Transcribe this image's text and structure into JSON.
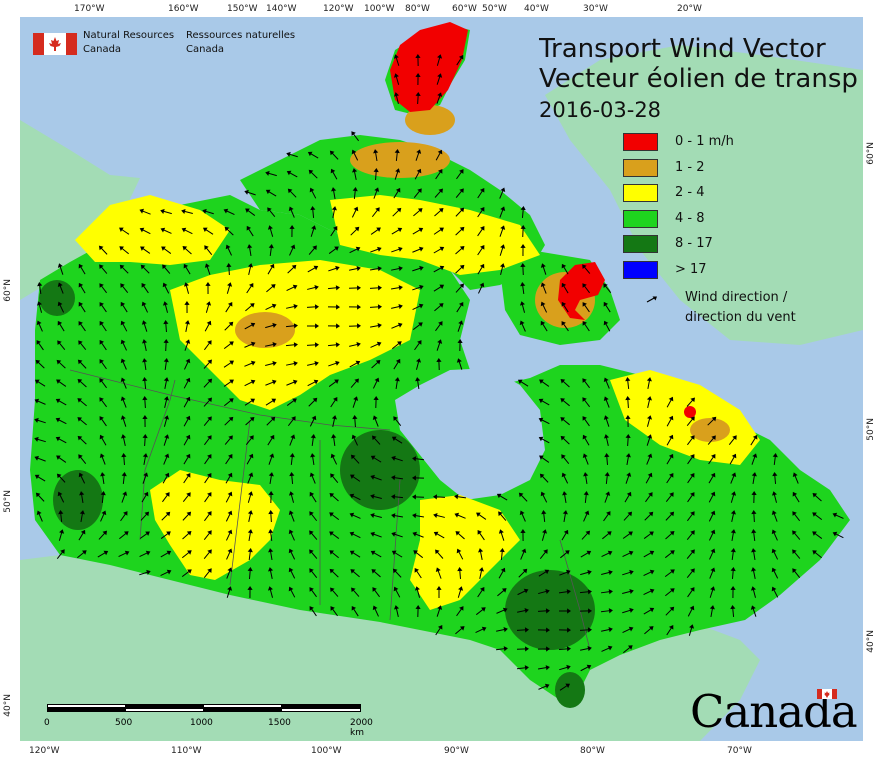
{
  "map": {
    "title_en": "Transport Wind Vector",
    "title_fr": "Vecteur éolien de transp",
    "date": "2016-03-28",
    "agency_en_line1": "Natural Resources",
    "agency_en_line2": "Canada",
    "agency_fr_line1": "Ressources naturelles",
    "agency_fr_line2": "Canada",
    "wordmark": "Canada",
    "colors": {
      "ocean": "#a9c9e8",
      "foreign_land": "#a3dcb5",
      "band_0_1": "#f20000",
      "band_1_2": "#d9a01c",
      "band_2_4": "#ffff00",
      "band_4_8": "#1ed41e",
      "band_8_17": "#147814",
      "band_17_plus": "#0000ff",
      "flag_red": "#d52b1e"
    }
  },
  "legend": {
    "items": [
      {
        "label": "0 - 1 m/h",
        "color": "#f20000"
      },
      {
        "label": "1 - 2",
        "color": "#d9a01c"
      },
      {
        "label": "2 - 4",
        "color": "#ffff00"
      },
      {
        "label": "4 - 8",
        "color": "#1ed41e"
      },
      {
        "label": "8 - 17",
        "color": "#147814"
      },
      {
        "label": "> 17",
        "color": "#0000ff"
      }
    ],
    "wind_label_line1": "Wind direction /",
    "wind_label_line2": "direction du vent"
  },
  "scale": {
    "labels": [
      "0",
      "500",
      "1000",
      "1500",
      "2000 km"
    ]
  },
  "graticule": {
    "top": [
      "170°W",
      "160°W",
      "150°W",
      "140°W",
      "120°W",
      "100°W",
      "80°W",
      "60°W",
      "50°W",
      "40°W",
      "30°W",
      "20°W"
    ],
    "bottom": [
      "120°W",
      "110°W",
      "100°W",
      "90°W",
      "80°W",
      "70°W"
    ],
    "left": [
      "60°N",
      "50°N",
      "40°N"
    ],
    "right": [
      "60°N",
      "50°N",
      "40°N"
    ]
  }
}
